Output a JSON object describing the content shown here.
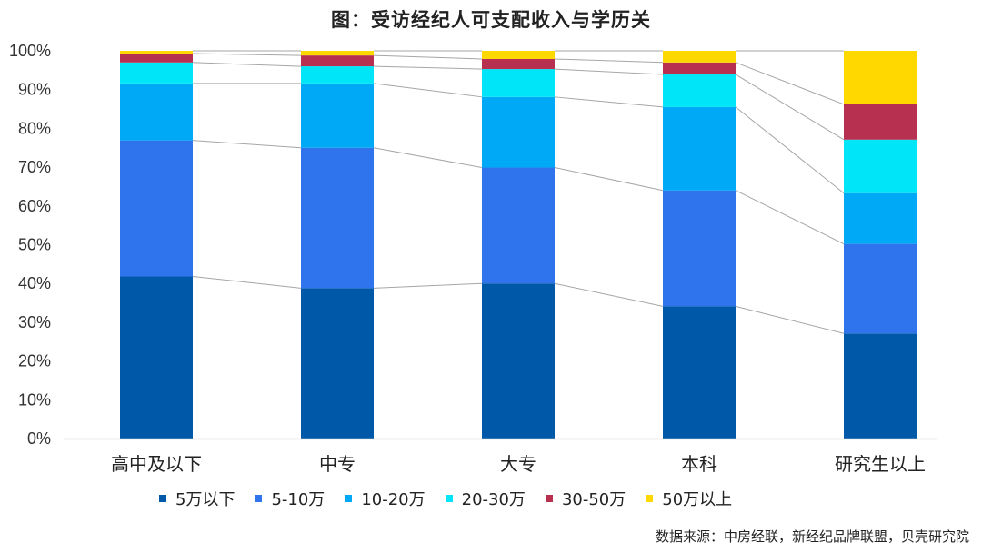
{
  "title": "图：受访经纪人可支配收入与学历关",
  "source": "数据来源：中房经联，新经纪品牌联盟，贝壳研究院",
  "chart_data": {
    "type": "bar",
    "stacked": true,
    "percent_stacked": true,
    "title": "图：受访经纪人可支配收入与学历关",
    "xlabel": "",
    "ylabel": "",
    "ylim": [
      0,
      100
    ],
    "yticks": [
      "0%",
      "10%",
      "20%",
      "30%",
      "40%",
      "50%",
      "60%",
      "70%",
      "80%",
      "90%",
      "100%"
    ],
    "grid": false,
    "legend_position": "bottom",
    "series_lines": true,
    "categories": [
      "高中及以下",
      "中专",
      "大专",
      "本科",
      "研究生以上"
    ],
    "series": [
      {
        "name": "5万以下",
        "color": "#0058A8",
        "values": [
          41.8,
          38.8,
          40.0,
          34.1,
          27.1
        ]
      },
      {
        "name": "5-10万",
        "color": "#2F74EC",
        "values": [
          35.1,
          36.2,
          29.9,
          29.9,
          23.1
        ]
      },
      {
        "name": "10-20万",
        "color": "#00A9F5",
        "values": [
          14.7,
          16.6,
          18.2,
          21.5,
          13.1
        ]
      },
      {
        "name": "20-30万",
        "color": "#00E6F8",
        "values": [
          5.4,
          4.4,
          7.2,
          8.4,
          13.8
        ]
      },
      {
        "name": "30-50万",
        "color": "#B8304F",
        "values": [
          2.3,
          2.8,
          2.6,
          3.1,
          9.1
        ]
      },
      {
        "name": "50万以上",
        "color": "#FFD800",
        "values": [
          0.7,
          1.2,
          2.1,
          3.0,
          13.8
        ]
      }
    ]
  }
}
